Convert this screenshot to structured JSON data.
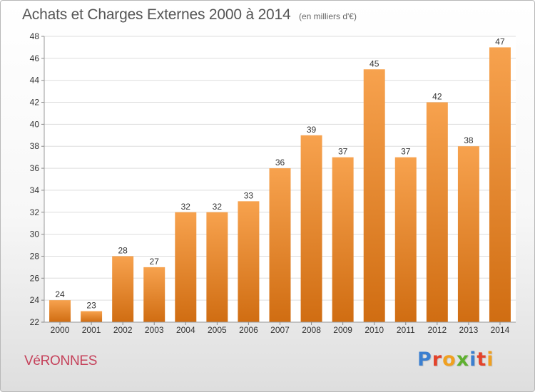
{
  "header": {
    "title": "Achats et Charges Externes 2000 à 2014",
    "subtitle": "(en milliers d'€)"
  },
  "footer": {
    "place": "VéRONNES",
    "brand": "Proxiti",
    "brand_colors": [
      "#3b7fd0",
      "#e3432b",
      "#f0a020",
      "#5fb030",
      "#3b7fd0",
      "#e3432b",
      "#f0a020"
    ]
  },
  "colors": {
    "bar_light": "#f7a24e",
    "bar_dark": "#d06d12",
    "grid": "#dddddd",
    "axis_text": "#333333"
  },
  "chart_data": {
    "type": "bar",
    "categories": [
      "2000",
      "2001",
      "2002",
      "2003",
      "2004",
      "2005",
      "2006",
      "2007",
      "2008",
      "2009",
      "2010",
      "2011",
      "2012",
      "2013",
      "2014"
    ],
    "values": [
      24,
      23,
      28,
      27,
      32,
      32,
      33,
      36,
      39,
      37,
      45,
      37,
      42,
      38,
      47
    ],
    "ylim": [
      22,
      48
    ],
    "yticks": [
      22,
      24,
      26,
      28,
      30,
      32,
      34,
      36,
      38,
      40,
      42,
      44,
      46,
      48
    ],
    "grid": true,
    "data_labels": true
  }
}
